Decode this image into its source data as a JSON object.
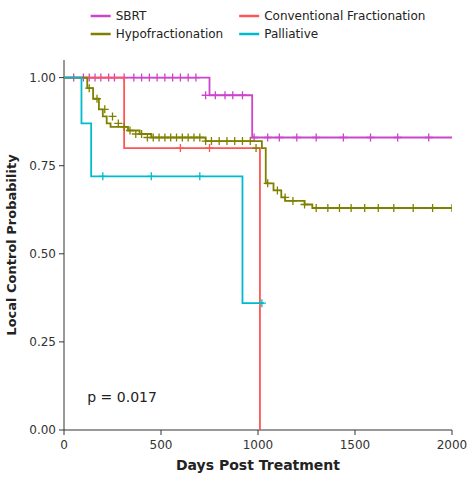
{
  "chart_data": {
    "type": "kaplan-meier",
    "xlabel": "Days Post Treatment",
    "ylabel": "Local Control Probability",
    "xlim": [
      0,
      2000
    ],
    "ylim": [
      0.0,
      1.05
    ],
    "xticks": [
      0,
      500,
      1000,
      1500,
      2000
    ],
    "yticks": [
      {
        "value": 0.0,
        "label": "0.00"
      },
      0.25,
      {
        "value": 0.5,
        "label": "0.50"
      },
      0.75,
      {
        "value": 1.0,
        "label": "1.00"
      }
    ],
    "legend": "top",
    "annotations": [
      {
        "text": "p = 0.017",
        "x": 120,
        "y": 0.08
      }
    ],
    "series": [
      {
        "name": "SBRT",
        "color": "#cc44cc",
        "x": [
          0,
          700,
          750,
          900,
          960,
          970,
          2000
        ],
        "values": [
          1.0,
          1.0,
          0.95,
          0.95,
          0.95,
          0.83,
          0.83
        ],
        "censor_x": [
          50,
          100,
          130,
          160,
          190,
          230,
          260,
          310,
          360,
          400,
          440,
          480,
          520,
          560,
          600,
          640,
          680,
          730,
          780,
          830,
          870,
          920,
          980,
          1050,
          1110,
          1200,
          1300,
          1440,
          1580,
          1720,
          1880
        ],
        "censor_values": [
          1.0,
          1.0,
          1.0,
          1.0,
          1.0,
          1.0,
          1.0,
          1.0,
          1.0,
          1.0,
          1.0,
          1.0,
          1.0,
          1.0,
          1.0,
          1.0,
          1.0,
          0.95,
          0.95,
          0.95,
          0.95,
          0.95,
          0.83,
          0.83,
          0.83,
          0.83,
          0.83,
          0.83,
          0.83,
          0.83,
          0.83
        ]
      },
      {
        "name": "Conventional Fractionation",
        "color": "#ff5555",
        "x": [
          0,
          300,
          310,
          1000,
          1010
        ],
        "values": [
          1.0,
          1.0,
          0.8,
          0.8,
          0.0
        ],
        "censor_x": [
          600,
          750
        ],
        "censor_values": [
          0.8,
          0.8
        ]
      },
      {
        "name": "Hypofractionation",
        "color": "#808000",
        "x": [
          0,
          100,
          120,
          150,
          180,
          200,
          220,
          240,
          270,
          300,
          330,
          360,
          390,
          420,
          450,
          480,
          510,
          540,
          570,
          600,
          630,
          660,
          700,
          730,
          760,
          790,
          820,
          850,
          880,
          910,
          940,
          970,
          1000,
          1020,
          1040,
          1060,
          1080,
          1100,
          1120,
          1140,
          1160,
          1200,
          1240,
          1280,
          1320,
          1360,
          1400,
          1500,
          1600,
          1700,
          1800,
          1900,
          2000
        ],
        "values": [
          1.0,
          1.0,
          0.97,
          0.94,
          0.91,
          0.89,
          0.87,
          0.86,
          0.86,
          0.86,
          0.85,
          0.85,
          0.84,
          0.84,
          0.83,
          0.83,
          0.83,
          0.83,
          0.83,
          0.83,
          0.83,
          0.83,
          0.83,
          0.82,
          0.82,
          0.82,
          0.82,
          0.82,
          0.82,
          0.82,
          0.82,
          0.82,
          0.82,
          0.8,
          0.7,
          0.7,
          0.68,
          0.68,
          0.66,
          0.65,
          0.65,
          0.65,
          0.64,
          0.63,
          0.63,
          0.63,
          0.63,
          0.63,
          0.63,
          0.63,
          0.63,
          0.63,
          0.63
        ],
        "censor_x": [
          130,
          170,
          210,
          250,
          280,
          310,
          340,
          370,
          400,
          430,
          460,
          490,
          520,
          550,
          580,
          610,
          640,
          670,
          700,
          730,
          760,
          800,
          840,
          880,
          920,
          960,
          990,
          1050,
          1100,
          1140,
          1180,
          1240,
          1300,
          1360,
          1420,
          1480,
          1550,
          1620,
          1700,
          1800,
          1900,
          2000
        ],
        "censor_values": [
          0.97,
          0.94,
          0.91,
          0.89,
          0.87,
          0.86,
          0.85,
          0.84,
          0.84,
          0.83,
          0.83,
          0.83,
          0.83,
          0.83,
          0.83,
          0.83,
          0.83,
          0.83,
          0.83,
          0.82,
          0.82,
          0.82,
          0.82,
          0.82,
          0.82,
          0.82,
          0.8,
          0.7,
          0.68,
          0.66,
          0.65,
          0.64,
          0.63,
          0.63,
          0.63,
          0.63,
          0.63,
          0.63,
          0.63,
          0.63,
          0.63,
          0.63
        ]
      },
      {
        "name": "Palliative",
        "color": "#00bbcc",
        "x": [
          0,
          80,
          90,
          130,
          140,
          900,
          920,
          1030
        ],
        "values": [
          1.0,
          1.0,
          0.87,
          0.87,
          0.72,
          0.72,
          0.36,
          0.36
        ],
        "censor_x": [
          200,
          450,
          700,
          1020
        ],
        "censor_values": [
          0.72,
          0.72,
          0.72,
          0.36
        ]
      }
    ]
  }
}
